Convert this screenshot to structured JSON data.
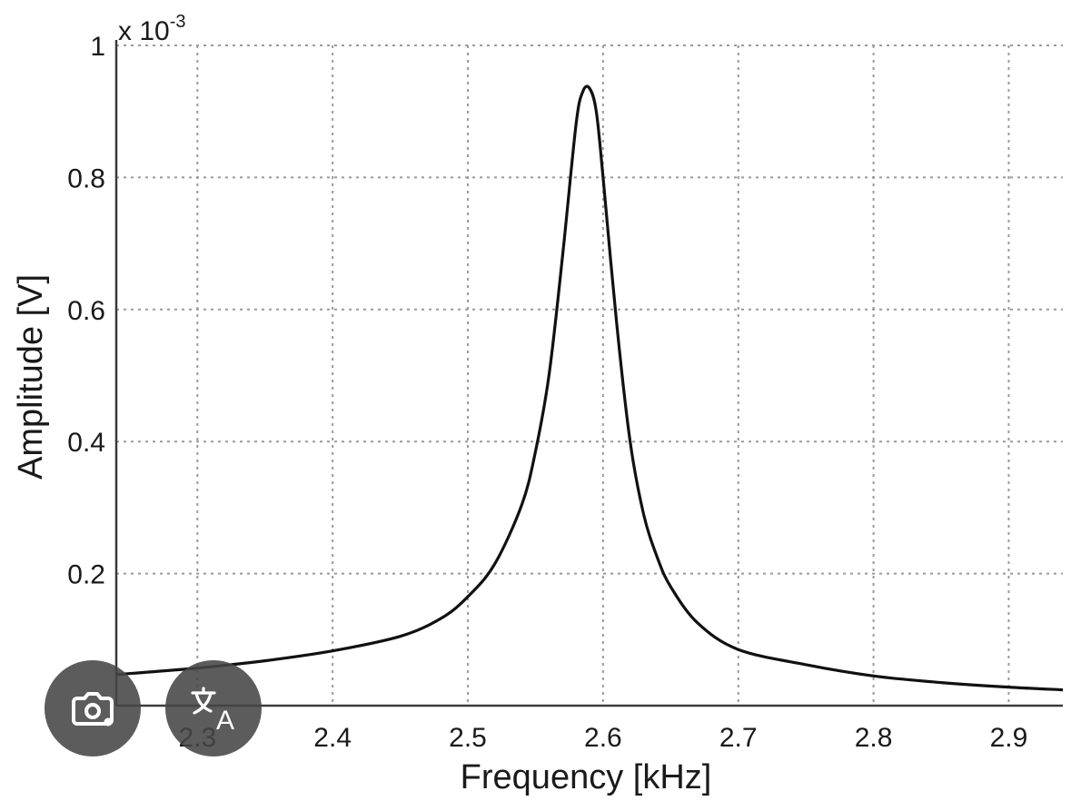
{
  "chart_data": {
    "type": "line",
    "title": "",
    "xlabel": "Frequency [kHz]",
    "ylabel": "Amplitude [V]",
    "y_multiplier": "x 10",
    "y_multiplier_exponent": "-3",
    "xlim": [
      2.24,
      2.94
    ],
    "ylim": [
      0,
      1.0
    ],
    "x_ticks": [
      "2.3",
      "2.4",
      "2.5",
      "2.6",
      "2.7",
      "2.8",
      "2.9"
    ],
    "y_ticks": [
      "0.2",
      "0.4",
      "0.6",
      "0.8",
      "1"
    ],
    "grid": true,
    "series": [
      {
        "x": [
          2.24,
          2.3,
          2.35,
          2.4,
          2.45,
          2.48,
          2.5,
          2.52,
          2.54,
          2.55,
          2.56,
          2.57,
          2.58,
          2.585,
          2.59,
          2.595,
          2.6,
          2.61,
          2.62,
          2.63,
          2.64,
          2.65,
          2.67,
          2.7,
          2.75,
          2.8,
          2.85,
          2.9,
          2.94
        ],
        "values": [
          0.047,
          0.057,
          0.068,
          0.083,
          0.105,
          0.132,
          0.165,
          0.215,
          0.305,
          0.385,
          0.5,
          0.68,
          0.88,
          0.93,
          0.935,
          0.9,
          0.8,
          0.58,
          0.4,
          0.29,
          0.225,
          0.18,
          0.125,
          0.085,
          0.062,
          0.045,
          0.035,
          0.028,
          0.024
        ]
      }
    ]
  },
  "overlay": {
    "lens_icon": "camera-lens-icon",
    "translate_icon": "translate-icon"
  }
}
